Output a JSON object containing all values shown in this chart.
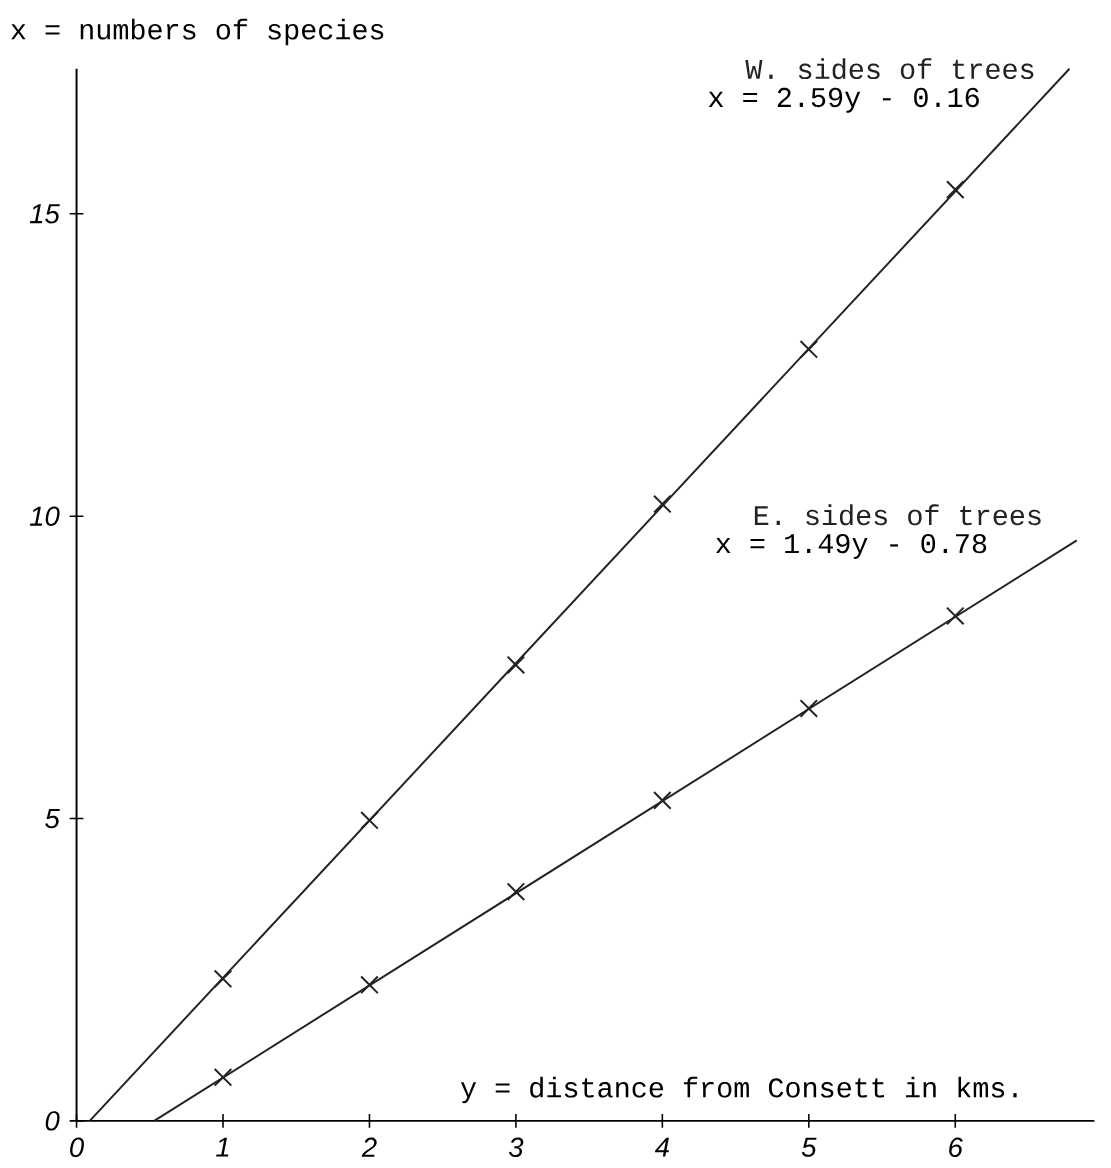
{
  "chart_data": {
    "type": "line",
    "xlabel": "y = distance from Consett in kms.",
    "ylabel": "x = numbers of species",
    "annotations": [
      "x = 2.59y - 0.16",
      "x = 1.49y - 0.78"
    ],
    "xlim": [
      0,
      6.95
    ],
    "ylim": [
      0,
      17.4
    ],
    "xticks": [
      0,
      1,
      2,
      3,
      4,
      5,
      6
    ],
    "yticks": [
      0,
      5,
      10,
      15
    ],
    "line_style": "solid",
    "series": [
      {
        "name": "W. sides of trees",
        "marker": "none",
        "color": "#222222",
        "x": [
          0.09,
          6.78
        ],
        "values": [
          0,
          17.4
        ]
      },
      {
        "name": "E. sides of trees",
        "marker": "none",
        "color": "#222222",
        "x": [
          0.53,
          6.83
        ],
        "values": [
          0,
          9.6
        ]
      },
      {
        "type": "scatter",
        "marker": "cross",
        "color": "#222222",
        "x": [
          1,
          2,
          3,
          4,
          5,
          6
        ],
        "values": [
          2.35,
          4.97,
          7.54,
          10.2,
          12.76,
          15.4
        ]
      },
      {
        "type": "scatter",
        "marker": "cross",
        "color": "#222222",
        "x": [
          1,
          2,
          3,
          4,
          5,
          6
        ],
        "values": [
          0.72,
          2.25,
          3.79,
          5.3,
          6.82,
          8.35
        ]
      }
    ]
  }
}
